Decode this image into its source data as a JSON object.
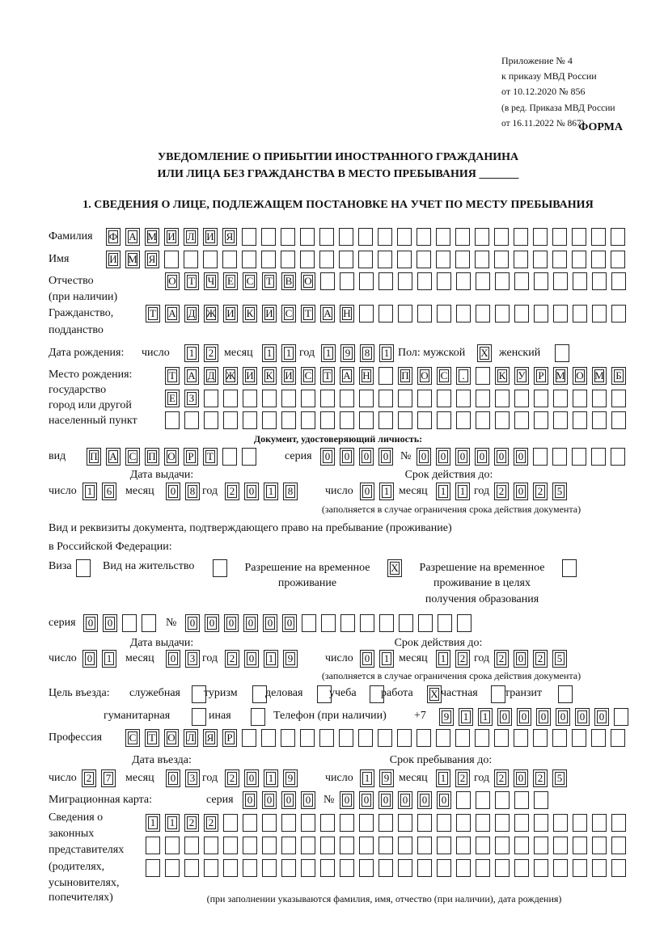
{
  "header": {
    "annex_lines": [
      "Приложение № 4",
      "к приказу МВД России",
      "от 10.12.2020 № 856"
    ],
    "edition_lines": [
      "(в ред. Приказа МВД России",
      "от 16.11.2022 № 867)"
    ],
    "form_label": "ФОРМА",
    "title_line1": "УВЕДОМЛЕНИЕ О ПРИБЫТИИ ИНОСТРАННОГО ГРАЖДАНИНА",
    "title_line2": "ИЛИ ЛИЦА БЕЗ ГРАЖДАНСТВА В МЕСТО ПРЕБЫВАНИЯ _______",
    "section1": "1. СВЕДЕНИЯ О ЛИЦЕ, ПОДЛЕЖАЩЕМ ПОСТАНОВКЕ НА УЧЕТ ПО МЕСТУ ПРЕБЫВАНИЯ"
  },
  "person": {
    "surname_label": "Фамилия",
    "surname": "ФАМИЛИЯ",
    "name_label": "Имя",
    "name": "ИМЯ",
    "patronymic_label": [
      "Отчество",
      "(при наличии)"
    ],
    "patronymic": "ОТЧЕСТВО",
    "citizenship_label": [
      "Гражданство,",
      "подданство"
    ],
    "citizenship": "ТАДЖИКИСТАН",
    "birth": {
      "label": "Дата рождения:",
      "day_label": "число",
      "day": "12",
      "month_label": "месяц",
      "month": "11",
      "year_label": "год",
      "year": "1981",
      "sex_label": "Пол: мужской",
      "male": "X",
      "female_label": "женский",
      "female": ""
    },
    "birthplace_label": [
      "Место рождения:",
      "государство",
      "город или другой",
      "населенный пункт"
    ],
    "birthplace": [
      "ТАДЖИКИСТАН ПОС. КУРМОМБ",
      "ЕЗ",
      ""
    ]
  },
  "id_document": {
    "heading": "Документ, удостоверяющий личность:",
    "type_label": "вид",
    "type": "ПАСПОРТ",
    "series_label": "серия",
    "series": "0000",
    "number_label": "№",
    "number": "000000",
    "issue_label": "Дата выдачи:",
    "valid_label": "Срок действия до:",
    "day_label": "число",
    "month_label": "месяц",
    "year_label": "год",
    "issue": {
      "day": "16",
      "month": "08",
      "year": "2018"
    },
    "valid": {
      "day": "01",
      "month": "11",
      "year": "2025"
    },
    "note": "(заполняется в случае ограничения срока действия документа)"
  },
  "stay_document": {
    "intro": [
      "Вид и реквизиты документа, подтверждающего право на пребывание (проживание)",
      "в Российской Федерации:"
    ],
    "visa_label": "Виза",
    "visa": "",
    "residence_label": "Вид на жительство",
    "residence": "",
    "temp_label": [
      "Разрешение на временное",
      "проживание"
    ],
    "temp": "X",
    "temp_edu_label": [
      "Разрешение на временное",
      "проживание в целях",
      "получения образования"
    ],
    "temp_edu": "",
    "series_label": "серия",
    "series": "00",
    "number_label": "№",
    "number": "000000",
    "issue_label": "Дата выдачи:",
    "valid_label": "Срок действия до:",
    "day_label": "число",
    "month_label": "месяц",
    "year_label": "год",
    "issue": {
      "day": "01",
      "month": "03",
      "year": "2019"
    },
    "valid": {
      "day": "01",
      "month": "12",
      "year": "2025"
    },
    "note": "(заполняется в случае ограничения срока действия документа)"
  },
  "purpose": {
    "label": "Цель въезда:",
    "options": [
      {
        "label": "служебная",
        "mark": ""
      },
      {
        "label": "туризм",
        "mark": ""
      },
      {
        "label": "деловая",
        "mark": ""
      },
      {
        "label": "учеба",
        "mark": ""
      },
      {
        "label": "работа",
        "mark": "X"
      },
      {
        "label": "частная",
        "mark": ""
      },
      {
        "label": "транзит",
        "mark": ""
      },
      {
        "label": "гуманитарная",
        "mark": ""
      },
      {
        "label": "иная",
        "mark": ""
      }
    ]
  },
  "phone": {
    "label": "Телефон (при наличии)",
    "prefix": "+7",
    "value": "911000000"
  },
  "profession": {
    "label": "Профессия",
    "value": "СТОЛЯР"
  },
  "entry": {
    "entry_label": "Дата въезда:",
    "stay_label": "Срок пребывания до:",
    "day_label": "число",
    "month_label": "месяц",
    "year_label": "год",
    "entry_date": {
      "day": "27",
      "month": "03",
      "year": "2019"
    },
    "stay_until": {
      "day": "19",
      "month": "12",
      "year": "2025"
    }
  },
  "migration_card": {
    "label": "Миграционная карта:",
    "series_label": "серия",
    "series": "0000",
    "number_label": "№",
    "number": "000000"
  },
  "representatives": {
    "label": [
      "Сведения о",
      "законных",
      "представителях",
      "(родителях,",
      "усыновителях,",
      "попечителях)"
    ],
    "rows": [
      "1122",
      "",
      ""
    ],
    "note": "(при заполнении указываются фамилия, имя, отчество (при наличии), дата рождения)"
  }
}
